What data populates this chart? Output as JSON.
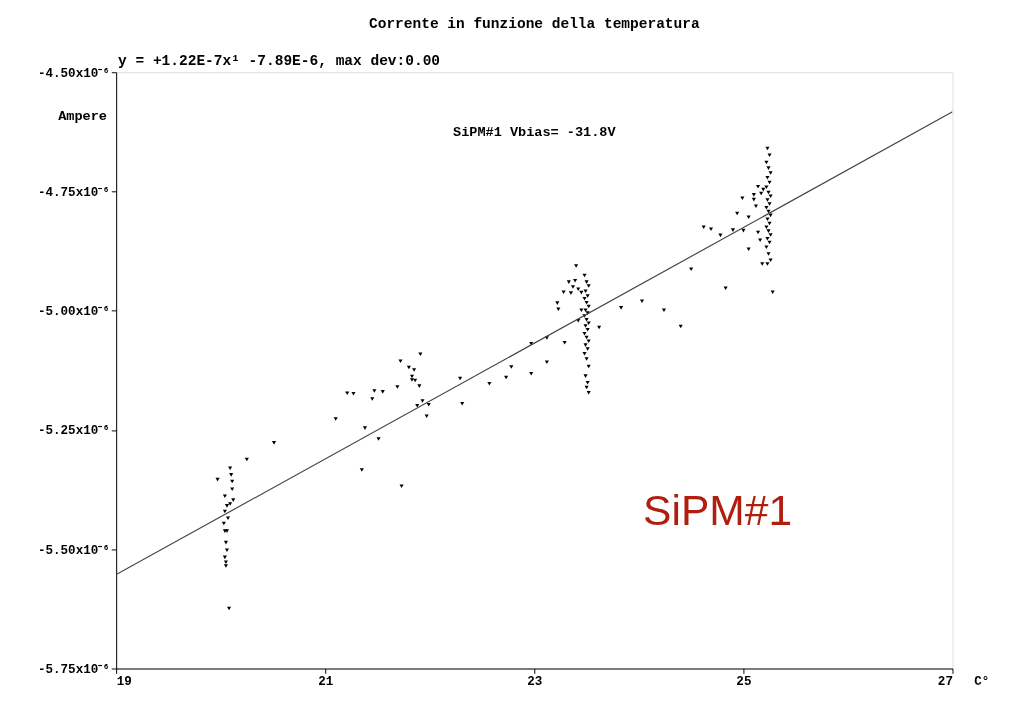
{
  "chart_data": {
    "type": "scatter",
    "title": "Corrente in funzione della temperatura",
    "subtitle": "y = +1.22E-7x¹ -7.89E-6, max dev:0.00",
    "xlabel": "C°",
    "ylabel": "Ampere",
    "xlim": [
      19,
      27
    ],
    "xticks": [
      19,
      21,
      23,
      25,
      27
    ],
    "ylim": [
      -5.75e-06,
      -4.5e-06
    ],
    "yticks": [
      {
        "value": -5.75e-06,
        "label": "-5.75x10⁻⁶"
      },
      {
        "value": -5.5e-06,
        "label": "-5.50x10⁻⁶"
      },
      {
        "value": -5.25e-06,
        "label": "-5.25x10⁻⁶"
      },
      {
        "value": -5e-06,
        "label": "-5.00x10⁻⁶"
      },
      {
        "value": -4.75e-06,
        "label": "-4.75x10⁻⁶"
      },
      {
        "value": -4.5e-06,
        "label": "-4.50x10⁻⁶"
      }
    ],
    "grid": false,
    "annotations": [
      "SiPM#1 Vbias= -31.8V",
      "SiPM#1"
    ],
    "series": [
      {
        "marker": "triangle",
        "color": "#000000",
        "x": [
          20.51,
          20.25,
          20.09,
          20.1,
          20.11,
          20.11,
          19.97,
          20.04,
          20.12,
          20.06,
          20.09,
          20.04,
          20.07,
          20.03,
          20.04,
          20.06,
          20.05,
          20.06,
          20.04,
          20.05,
          20.05,
          20.08,
          21.1,
          21.21,
          21.27,
          21.38,
          21.35,
          21.45,
          21.47,
          21.51,
          21.55,
          21.69,
          21.72,
          21.73,
          21.8,
          21.85,
          21.83,
          21.83,
          21.86,
          21.9,
          21.91,
          21.88,
          21.93,
          21.99,
          21.97,
          22.29,
          22.31,
          22.57,
          22.73,
          22.78,
          22.97,
          22.97,
          23.12,
          23.12,
          23.29,
          23.22,
          23.23,
          23.28,
          23.33,
          23.35,
          23.37,
          23.4,
          23.39,
          23.42,
          23.45,
          23.45,
          23.42,
          23.62,
          23.83,
          24.03,
          24.24,
          24.4,
          24.5,
          23.48,
          23.5,
          23.52,
          23.49,
          23.51,
          23.48,
          23.5,
          23.52,
          23.49,
          23.51,
          23.48,
          23.5,
          23.52,
          23.49,
          23.51,
          23.48,
          23.5,
          23.52,
          23.49,
          23.51,
          23.48,
          23.5,
          23.52,
          23.49,
          23.51,
          23.5,
          23.52,
          24.62,
          24.69,
          24.78,
          24.83,
          24.9,
          24.94,
          24.99,
          25.0,
          25.05,
          25.05,
          25.1,
          25.1,
          25.12,
          25.14,
          25.14,
          25.16,
          25.18,
          25.17,
          25.19,
          25.28,
          25.23,
          25.25,
          25.22,
          25.24,
          25.26,
          25.23,
          25.25,
          25.22,
          25.24,
          25.26,
          25.23,
          25.25,
          25.22,
          25.24,
          25.26,
          25.23,
          25.25,
          25.22,
          25.24,
          25.26,
          25.23,
          25.25,
          25.22,
          25.24,
          25.26,
          25.23
        ],
        "values": [
          -5.277e-06,
          -5.312e-06,
          -5.33e-06,
          -5.344e-06,
          -5.358e-06,
          -5.374e-06,
          -5.354e-06,
          -5.389e-06,
          -5.397e-06,
          -5.409e-06,
          -5.405e-06,
          -5.421e-06,
          -5.435e-06,
          -5.446e-06,
          -5.462e-06,
          -5.462e-06,
          -5.486e-06,
          -5.502e-06,
          -5.517e-06,
          -5.527e-06,
          -5.535e-06,
          -5.624e-06,
          -5.227e-06,
          -5.173e-06,
          -5.174e-06,
          -5.246e-06,
          -5.334e-06,
          -5.185e-06,
          -5.168e-06,
          -5.269e-06,
          -5.17e-06,
          -5.16e-06,
          -5.106e-06,
          -5.368e-06,
          -5.119e-06,
          -5.124e-06,
          -5.138e-06,
          -5.145e-06,
          -5.146e-06,
          -5.158e-06,
          -5.091e-06,
          -5.199e-06,
          -5.189e-06,
          -5.197e-06,
          -5.221e-06,
          -5.142e-06,
          -5.195e-06,
          -5.153e-06,
          -5.14e-06,
          -5.118e-06,
          -5.132e-06,
          -5.069e-06,
          -5.108e-06,
          -5.057e-06,
          -5.067e-06,
          -4.984e-06,
          -4.997e-06,
          -4.961e-06,
          -4.94e-06,
          -4.963e-06,
          -4.95e-06,
          -4.906e-06,
          -4.937e-06,
          -4.955e-06,
          -4.962e-06,
          -4.999e-06,
          -5.021e-06,
          -5.035e-06,
          -4.994e-06,
          -4.98e-06,
          -4.999e-06,
          -5.033e-06,
          -4.913e-06,
          -4.926e-06,
          -4.94e-06,
          -4.948e-06,
          -4.959e-06,
          -4.969e-06,
          -4.975e-06,
          -4.983e-06,
          -4.991e-06,
          -4.999e-06,
          -5.005e-06,
          -5.011e-06,
          -5.019e-06,
          -5.026e-06,
          -5.032e-06,
          -5.04e-06,
          -5.048e-06,
          -5.056e-06,
          -5.064e-06,
          -5.072e-06,
          -5.08e-06,
          -5.09e-06,
          -5.101e-06,
          -5.117e-06,
          -5.137e-06,
          -5.151e-06,
          -5.161e-06,
          -5.172e-06,
          -4.825e-06,
          -4.829e-06,
          -4.842e-06,
          -4.953e-06,
          -4.831e-06,
          -4.796e-06,
          -4.764e-06,
          -4.832e-06,
          -4.804e-06,
          -4.871e-06,
          -4.757e-06,
          -4.767e-06,
          -4.781e-06,
          -4.74e-06,
          -4.836e-06,
          -4.852e-06,
          -4.902e-06,
          -4.754e-06,
          -4.746e-06,
          -4.961e-06,
          -4.66e-06,
          -4.674e-06,
          -4.689e-06,
          -4.701e-06,
          -4.711e-06,
          -4.721e-06,
          -4.731e-06,
          -4.741e-06,
          -4.752e-06,
          -4.76e-06,
          -4.768e-06,
          -4.776e-06,
          -4.784e-06,
          -4.792e-06,
          -4.8e-06,
          -4.808e-06,
          -4.817e-06,
          -4.825e-06,
          -4.833e-06,
          -4.841e-06,
          -4.849e-06,
          -4.857e-06,
          -4.867e-06,
          -4.881e-06,
          -4.894e-06,
          -4.902e-06
        ]
      },
      {
        "type": "line",
        "color": "#444444",
        "x": [
          19,
          27
        ],
        "values": [
          -5.553e-06,
          -4.583e-06
        ]
      }
    ]
  }
}
